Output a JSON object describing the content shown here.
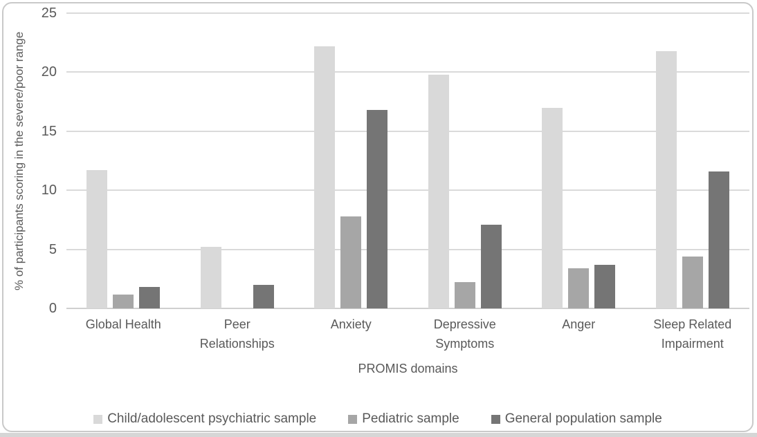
{
  "chart_data": {
    "type": "bar",
    "title": "",
    "categories": [
      "Global Health",
      "Peer Relationships",
      "Anxiety",
      "Depressive Symptoms",
      "Anger",
      "Sleep Related Impairment"
    ],
    "series": [
      {
        "name": "Child/adolescent psychiatric sample",
        "color": "#d9d9d9",
        "values": [
          11.7,
          5.2,
          22.2,
          19.8,
          17.0,
          21.8
        ]
      },
      {
        "name": "Pediatric sample",
        "color": "#a6a6a6",
        "values": [
          1.2,
          0,
          7.8,
          2.2,
          3.4,
          4.4
        ]
      },
      {
        "name": "General population sample",
        "color": "#757575",
        "values": [
          1.8,
          2.0,
          16.8,
          7.1,
          3.7,
          11.6
        ]
      }
    ],
    "xlabel": "PROMIS domains",
    "ylabel": "% of participants scoring in the severe/poor range",
    "ylim": [
      0,
      25
    ],
    "yticks": [
      0,
      5,
      10,
      15,
      20,
      25
    ],
    "grid": true,
    "legend_position": "bottom"
  },
  "colors": {
    "gridline": "#dadada",
    "baseline": "#cfcfcf",
    "axis_text": "#595959",
    "frame_border": "#c9c9c9",
    "background": "#ffffff",
    "bottom_strip": "#d6d6d6"
  }
}
